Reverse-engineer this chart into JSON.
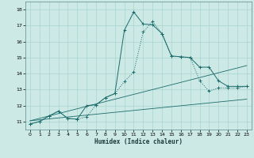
{
  "xlabel": "Humidex (Indice chaleur)",
  "ylabel": "",
  "bg_color": "#cce9e5",
  "grid_color": "#aad4d0",
  "line_color": "#1a6b6b",
  "xlim": [
    -0.5,
    23.5
  ],
  "ylim": [
    10.5,
    18.5
  ],
  "xticks": [
    0,
    1,
    2,
    3,
    4,
    5,
    6,
    7,
    8,
    9,
    10,
    11,
    12,
    13,
    14,
    15,
    16,
    17,
    18,
    19,
    20,
    21,
    22,
    23
  ],
  "yticks": [
    11,
    12,
    13,
    14,
    15,
    16,
    17,
    18
  ],
  "series1_x": [
    0,
    1,
    2,
    3,
    4,
    5,
    6,
    7,
    8,
    9,
    10,
    11,
    12,
    13,
    14,
    15,
    16,
    17,
    18,
    19,
    20,
    21,
    22,
    23
  ],
  "series1_y": [
    10.85,
    11.0,
    11.35,
    11.65,
    11.2,
    11.15,
    11.3,
    12.05,
    12.5,
    12.75,
    13.5,
    14.1,
    16.6,
    17.25,
    16.5,
    15.1,
    15.05,
    15.0,
    13.55,
    12.9,
    13.1,
    13.1,
    13.1,
    13.2
  ],
  "series2_x": [
    0,
    1,
    2,
    3,
    4,
    5,
    6,
    7,
    8,
    9,
    10,
    11,
    12,
    13,
    14,
    15,
    16,
    17,
    18,
    19,
    20,
    21,
    22,
    23
  ],
  "series2_y": [
    10.85,
    11.0,
    11.35,
    11.65,
    11.2,
    11.15,
    12.0,
    12.05,
    12.5,
    12.75,
    16.7,
    17.85,
    17.1,
    17.05,
    16.5,
    15.1,
    15.05,
    15.0,
    14.4,
    14.4,
    13.55,
    13.2,
    13.2,
    13.2
  ],
  "series3_x": [
    0,
    23
  ],
  "series3_y": [
    11.05,
    12.4
  ],
  "series4_x": [
    0,
    23
  ],
  "series4_y": [
    11.05,
    14.5
  ]
}
